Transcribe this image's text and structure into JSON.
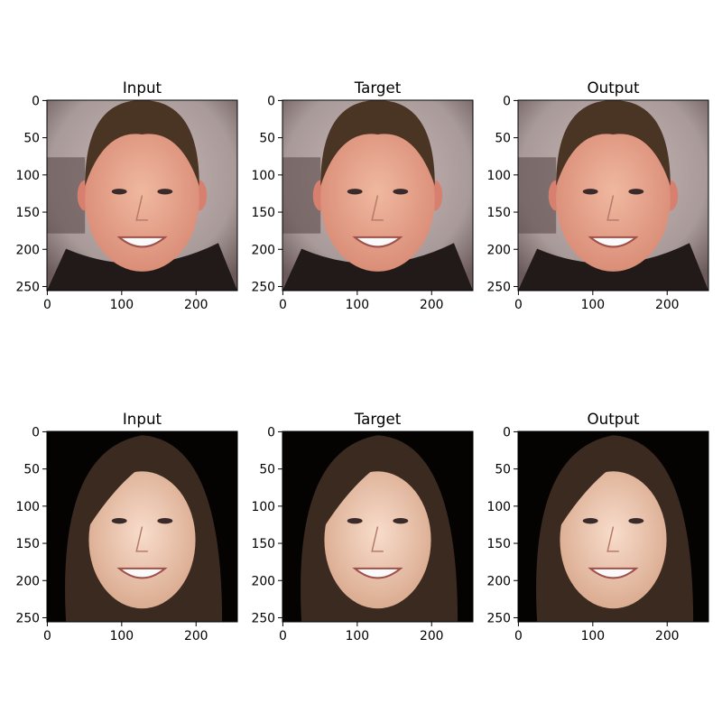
{
  "chart_data": [
    {
      "type": "image",
      "title": "Input",
      "xlim": [
        -0.5,
        255.5
      ],
      "ylim": [
        255.5,
        -0.5
      ],
      "xticks": [
        0,
        100,
        200
      ],
      "yticks": [
        0,
        50,
        100,
        150,
        200,
        250
      ]
    },
    {
      "type": "image",
      "title": "Target",
      "xlim": [
        -0.5,
        255.5
      ],
      "ylim": [
        255.5,
        -0.5
      ],
      "xticks": [
        0,
        100,
        200
      ],
      "yticks": [
        0,
        50,
        100,
        150,
        200,
        250
      ]
    },
    {
      "type": "image",
      "title": "Output",
      "xlim": [
        -0.5,
        255.5
      ],
      "ylim": [
        255.5,
        -0.5
      ],
      "xticks": [
        0,
        100,
        200
      ],
      "yticks": [
        0,
        50,
        100,
        150,
        200,
        250
      ]
    },
    {
      "type": "image",
      "title": "Input",
      "xlim": [
        -0.5,
        255.5
      ],
      "ylim": [
        255.5,
        -0.5
      ],
      "xticks": [
        0,
        100,
        200
      ],
      "yticks": [
        0,
        50,
        100,
        150,
        200,
        250
      ]
    },
    {
      "type": "image",
      "title": "Target",
      "xlim": [
        -0.5,
        255.5
      ],
      "ylim": [
        255.5,
        -0.5
      ],
      "xticks": [
        0,
        100,
        200
      ],
      "yticks": [
        0,
        50,
        100,
        150,
        200,
        250
      ]
    },
    {
      "type": "image",
      "title": "Output",
      "xlim": [
        -0.5,
        255.5
      ],
      "ylim": [
        255.5,
        -0.5
      ],
      "xticks": [
        0,
        100,
        200
      ],
      "yticks": [
        0,
        50,
        100,
        150,
        200,
        250
      ]
    }
  ]
}
